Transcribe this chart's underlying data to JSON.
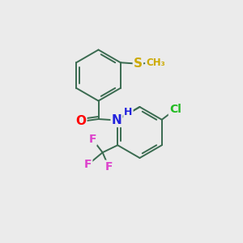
{
  "background_color": "#ebebeb",
  "bond_color": "#3a6b50",
  "atom_colors": {
    "O": "#ff0000",
    "N": "#2222dd",
    "S": "#ccaa00",
    "Cl": "#22bb22",
    "F": "#dd44cc",
    "H": "#555555"
  },
  "figsize": [
    3.0,
    3.0
  ],
  "dpi": 100,
  "bond_lw": 1.4,
  "font_size": 9.5
}
